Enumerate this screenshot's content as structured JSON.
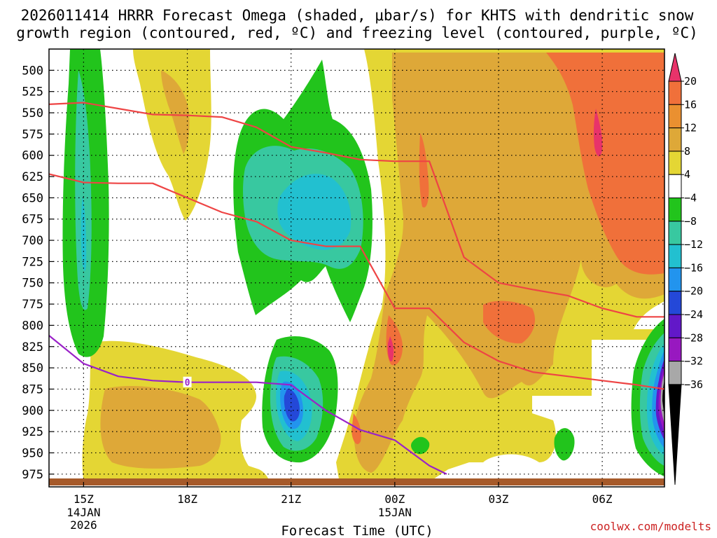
{
  "chart_data": {
    "type": "heatmap",
    "title_line1": "2026011414 HRRR Forecast Omega (shaded, μbar/s) for KHTS with dendritic snow",
    "title_line2": "growth region (contoured, red, ºC) and freezing level (contoured, purple, ºC)",
    "xlabel": "Forecast Time (UTC)",
    "credit": "coolwx.com/modelts",
    "x_ticks": [
      {
        "hour": 15,
        "label": "15Z",
        "sub1": "14JAN",
        "sub2": "2026"
      },
      {
        "hour": 18,
        "label": "18Z",
        "sub1": "",
        "sub2": ""
      },
      {
        "hour": 21,
        "label": "21Z",
        "sub1": "",
        "sub2": ""
      },
      {
        "hour": 24,
        "label": "00Z",
        "sub1": "15JAN",
        "sub2": ""
      },
      {
        "hour": 27,
        "label": "03Z",
        "sub1": "",
        "sub2": ""
      },
      {
        "hour": 30,
        "label": "06Z",
        "sub1": "",
        "sub2": ""
      }
    ],
    "x_range": [
      14,
      31.8
    ],
    "y_range_mb": [
      475,
      990
    ],
    "y_ticks": [
      500,
      525,
      550,
      575,
      600,
      625,
      650,
      675,
      700,
      725,
      750,
      775,
      800,
      825,
      850,
      875,
      900,
      925,
      950,
      975
    ],
    "colorbar": {
      "levels": [
        20,
        16,
        12,
        8,
        4,
        -4,
        -8,
        -12,
        -16,
        -20,
        -24,
        -28,
        -32,
        -36
      ],
      "labels": [
        "20",
        "16",
        "12",
        "8",
        "4",
        "−4",
        "−8",
        "−12",
        "−16",
        "−20",
        "−24",
        "−28",
        "−32",
        "−36"
      ],
      "colors": [
        "#e8336a",
        "#f0703a",
        "#ea9030",
        "#dea838",
        "#e4d634",
        "#ffffff",
        "#22c41c",
        "#38c8a0",
        "#22c0d0",
        "#2294ee",
        "#2448d8",
        "#6218c8",
        "#9818c0",
        "#a8a8a8",
        "#000000"
      ]
    },
    "colors": {
      "dgz_line": "#ee4444",
      "freezing_line": "#9a22c8",
      "ground": "#a65a2a"
    },
    "dgz_top_line": {
      "label": "dendritic growth region top (red)",
      "hours": [
        14,
        15,
        16,
        17,
        18,
        19,
        20,
        21,
        22,
        23,
        24,
        25,
        26,
        27,
        28,
        29,
        30,
        31,
        31.8
      ],
      "pressure_mb": [
        540,
        538,
        545,
        552,
        553,
        555,
        567,
        590,
        597,
        605,
        607,
        607,
        720,
        750,
        758,
        765,
        780,
        790,
        790
      ]
    },
    "dgz_bottom_line": {
      "label": "dendritic growth region bottom (red)",
      "hours": [
        14,
        15,
        16,
        17,
        18,
        19,
        20,
        21,
        22,
        23,
        24,
        25,
        26,
        27,
        28,
        29,
        30,
        31,
        31.8
      ],
      "pressure_mb": [
        622,
        632,
        633,
        633,
        650,
        667,
        678,
        700,
        707,
        707,
        780,
        780,
        820,
        842,
        855,
        860,
        865,
        870,
        875
      ]
    },
    "freezing_level": {
      "label": "0",
      "hours": [
        14,
        15,
        16,
        17,
        18,
        19,
        20,
        21,
        22,
        23,
        24,
        25,
        25.5
      ],
      "pressure_mb": [
        812,
        845,
        860,
        865,
        867,
        867,
        867,
        870,
        900,
        923,
        935,
        965,
        975
      ]
    },
    "omega_features": [
      {
        "label": "upward band west",
        "omega_min": -16,
        "hours": [
          14.6,
          15.6
        ],
        "pressure_mb": [
          490,
          805
        ]
      },
      {
        "label": "upward cell mid-level",
        "omega_min": -16,
        "hours": [
          19.3,
          23.2
        ],
        "pressure_mb": [
          515,
          775
        ]
      },
      {
        "label": "upward cell low-level",
        "omega_min": -24,
        "hours": [
          20.3,
          22.4
        ],
        "pressure_mb": [
          780,
          950
        ]
      },
      {
        "label": "upward cell east edge",
        "omega_min": -36,
        "hours": [
          30.8,
          31.8
        ],
        "pressure_mb": [
          750,
          960
        ]
      },
      {
        "label": "downward region east",
        "omega_max": 20,
        "hours": [
          23,
          31.8
        ],
        "pressure_mb": [
          480,
          975
        ]
      }
    ]
  }
}
